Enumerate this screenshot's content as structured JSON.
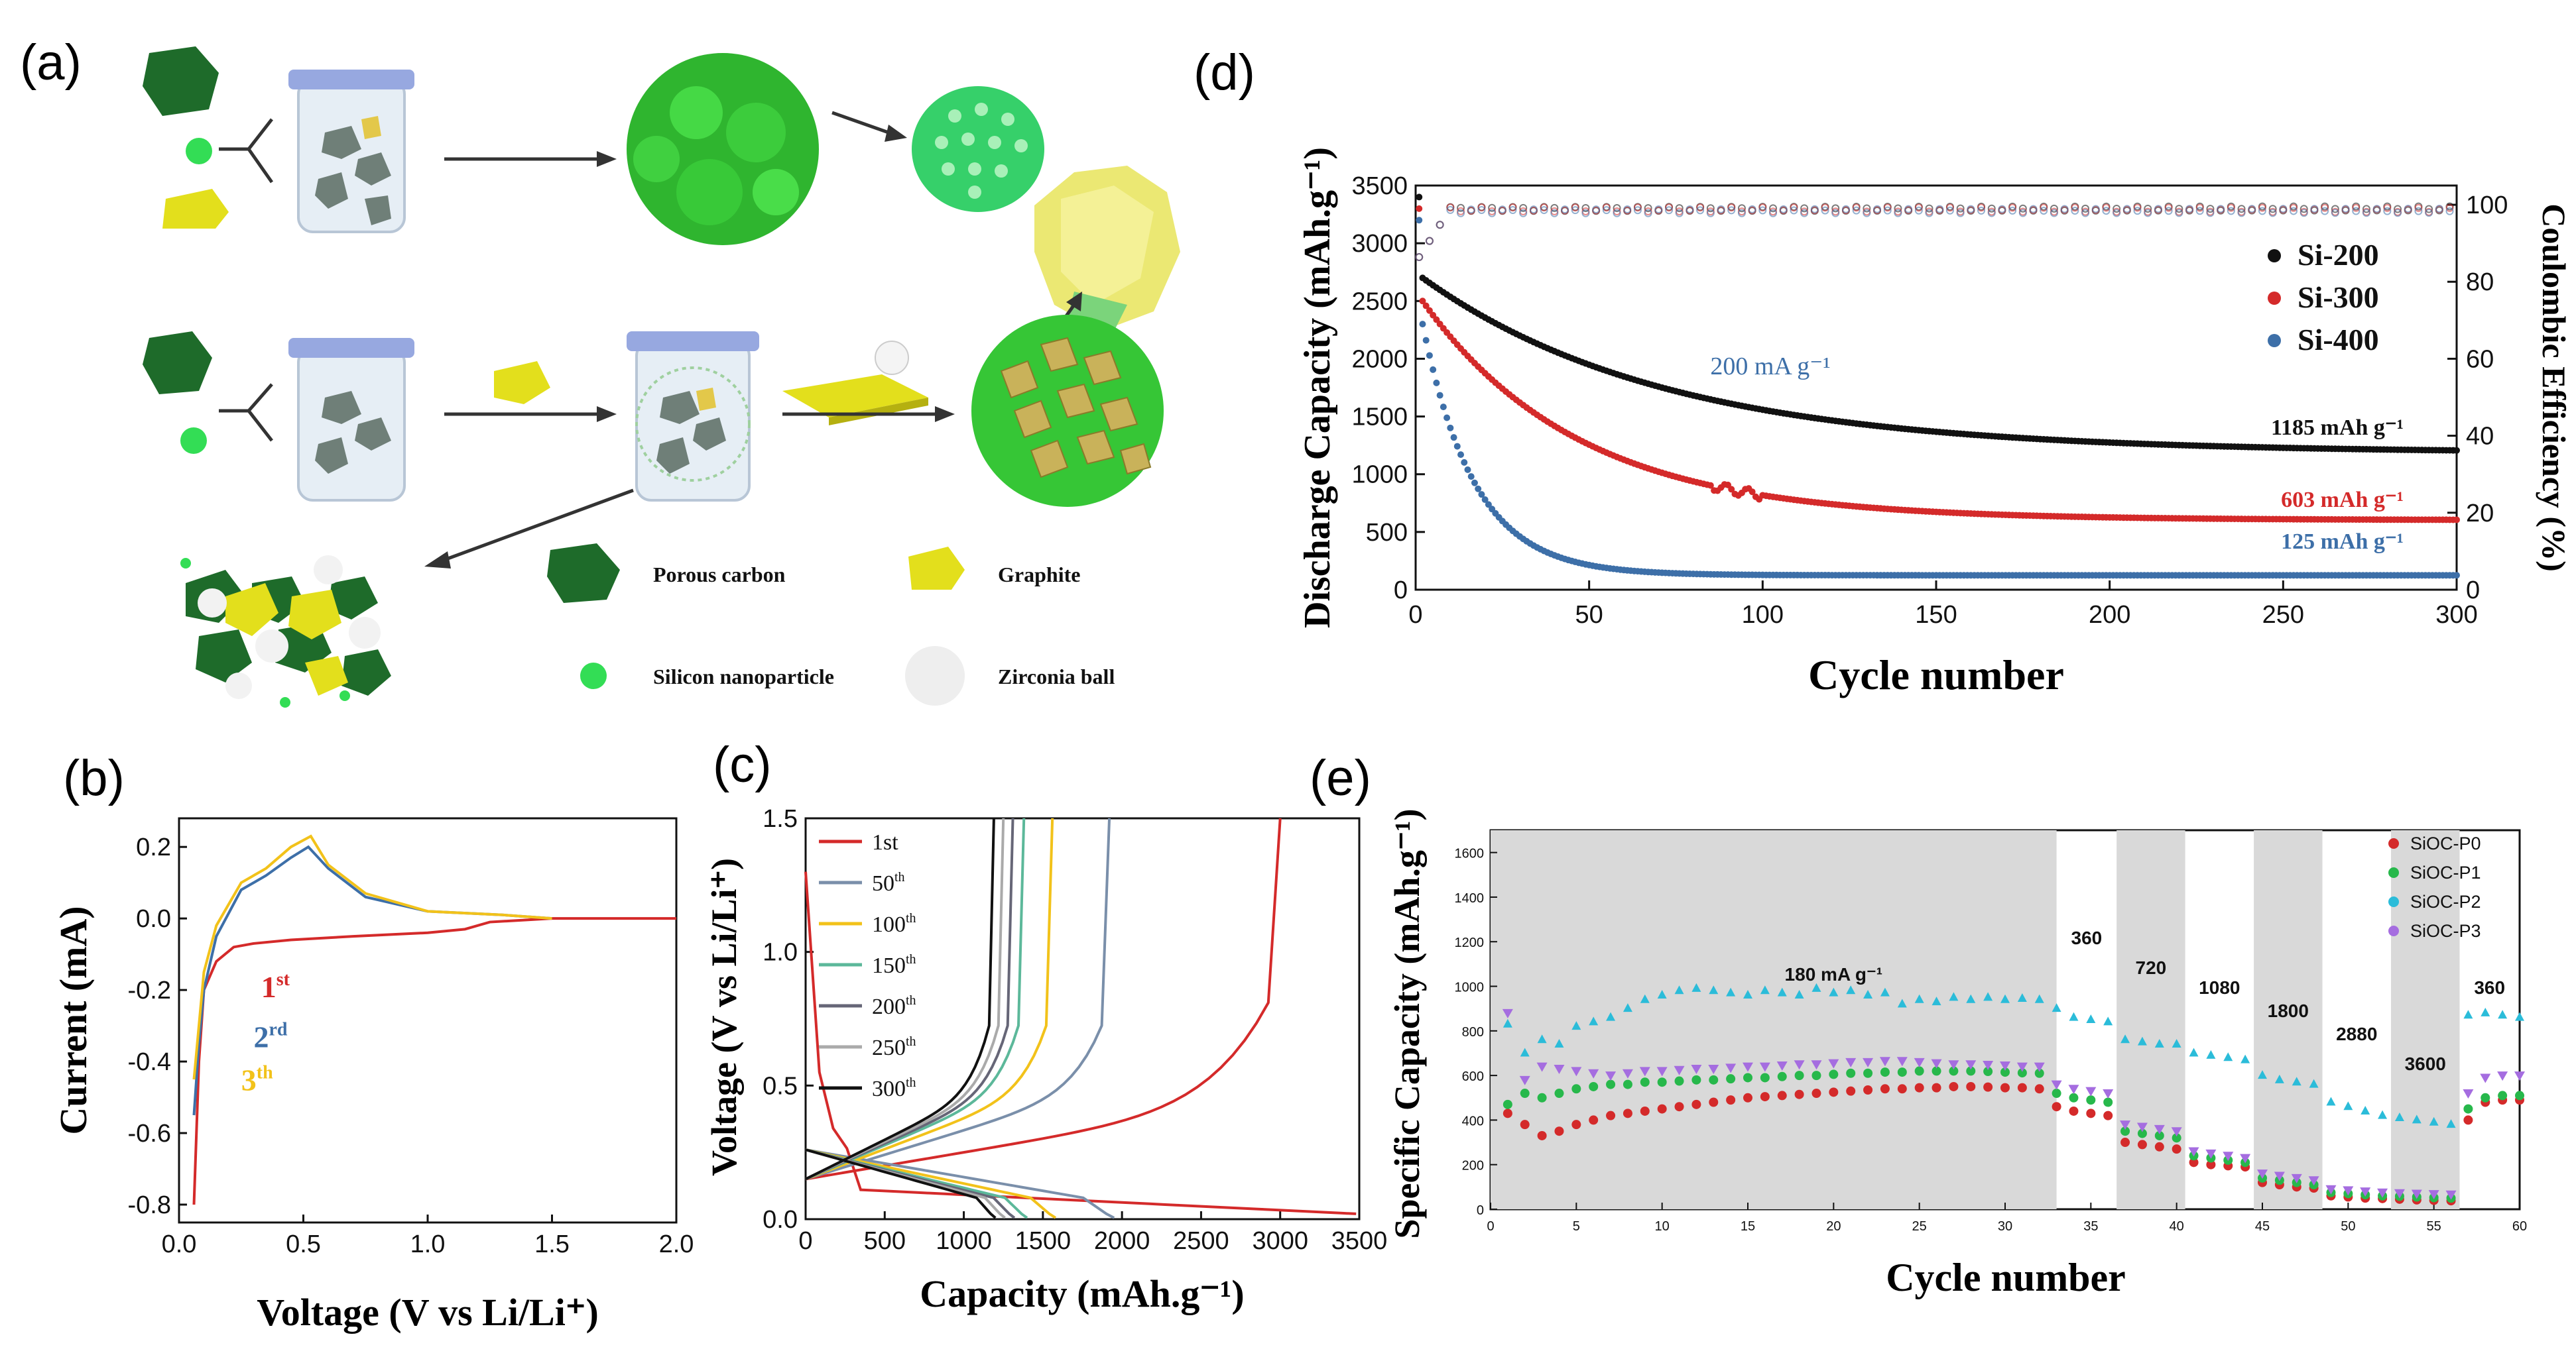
{
  "panels": {
    "a": {
      "label": "(a)",
      "legend": [
        {
          "label": "Porous carbon",
          "icon": "porous-carbon-icon",
          "color": "#1e6b2a"
        },
        {
          "label": "Graphite",
          "icon": "graphite-icon",
          "color": "#e3df1c"
        },
        {
          "label": "Silicon nanoparticle",
          "icon": "silicon-nanoparticle-icon",
          "color": "#33dd55"
        },
        {
          "label": "Zirconia ball",
          "icon": "zirconia-ball-icon",
          "color": "#eeeeee"
        }
      ]
    },
    "b": {
      "label": "(b)"
    },
    "c": {
      "label": "(c)"
    },
    "d": {
      "label": "(d)"
    },
    "e": {
      "label": "(e)"
    }
  },
  "colors": {
    "red": "#d42a2a",
    "black": "#111111",
    "blue": "#3d6fa8",
    "cyan": "#2bbcd9",
    "green": "#27b84b",
    "purple": "#a56de0",
    "yellow": "#f2c21a",
    "gray_band": "#d9d9d9"
  },
  "chart_data": [
    {
      "id": "b",
      "type": "line",
      "title": "",
      "xlabel": "Voltage (V vs Li/Li⁺)",
      "ylabel": "Current (mA)",
      "xlim": [
        0.0,
        2.0
      ],
      "ylim": [
        -0.85,
        0.28
      ],
      "xticks": [
        "0.0",
        "0.5",
        "1.0",
        "1.5",
        "2.0"
      ],
      "yticks": [
        "0.2",
        "0.0",
        "-0.2",
        "-0.4",
        "-0.6",
        "-0.8"
      ],
      "annotations": [
        {
          "text": "1",
          "sup": "st",
          "color": "red",
          "x": 0.33,
          "y": -0.22
        },
        {
          "text": "2",
          "sup": "rd",
          "color": "blue",
          "x": 0.3,
          "y": -0.36
        },
        {
          "text": "3",
          "sup": "th",
          "color": "yellow",
          "x": 0.25,
          "y": -0.48
        }
      ],
      "series": [
        {
          "name": "1st",
          "color": "red",
          "x": [
            0.06,
            0.08,
            0.1,
            0.15,
            0.22,
            0.3,
            0.45,
            0.7,
            1.0,
            1.15,
            1.25,
            1.5,
            2.0
          ],
          "y": [
            -0.8,
            -0.4,
            -0.2,
            -0.12,
            -0.08,
            -0.07,
            -0.06,
            -0.05,
            -0.04,
            -0.03,
            -0.01,
            0.0,
            0.0
          ]
        },
        {
          "name": "2nd",
          "color": "blue",
          "x": [
            0.06,
            0.08,
            0.1,
            0.15,
            0.25,
            0.35,
            0.45,
            0.52,
            0.6,
            0.75,
            1.0,
            1.3,
            1.5
          ],
          "y": [
            -0.55,
            -0.35,
            -0.2,
            -0.05,
            0.08,
            0.12,
            0.17,
            0.2,
            0.14,
            0.06,
            0.02,
            0.01,
            0.0
          ]
        },
        {
          "name": "3rd",
          "color": "yellow",
          "x": [
            0.06,
            0.08,
            0.1,
            0.15,
            0.25,
            0.35,
            0.45,
            0.53,
            0.6,
            0.75,
            1.0,
            1.3,
            1.5
          ],
          "y": [
            -0.45,
            -0.3,
            -0.15,
            -0.02,
            0.1,
            0.14,
            0.2,
            0.23,
            0.15,
            0.07,
            0.02,
            0.01,
            0.0
          ]
        }
      ]
    },
    {
      "id": "c",
      "type": "line",
      "title": "",
      "xlabel": "Capacity (mAh.g⁻¹)",
      "ylabel": "Voltage (V vs Li/Li⁺)",
      "xlim": [
        0,
        3500
      ],
      "ylim": [
        0.0,
        1.5
      ],
      "xticks": [
        "0",
        "500",
        "1000",
        "1500",
        "2000",
        "2500",
        "3000",
        "3500"
      ],
      "yticks": [
        "0.0",
        "0.5",
        "1.0",
        "1.5"
      ],
      "legend": [
        {
          "label": "1st",
          "color": "#d42a2a"
        },
        {
          "label": "50",
          "sup": "th",
          "color": "#7a8faa"
        },
        {
          "label": "100",
          "sup": "th",
          "color": "#f2c21a"
        },
        {
          "label": "150",
          "sup": "th",
          "color": "#5cb89a"
        },
        {
          "label": "200",
          "sup": "th",
          "color": "#666677"
        },
        {
          "label": "250",
          "sup": "th",
          "color": "#aaaaaa"
        },
        {
          "label": "300",
          "sup": "th",
          "color": "#111111"
        }
      ],
      "series": [
        {
          "name": "1st",
          "color": "#d42a2a",
          "discharge_end": 3480,
          "charge_end": 3000
        },
        {
          "name": "50th",
          "color": "#7a8faa",
          "discharge_end": 1950,
          "charge_end": 1920
        },
        {
          "name": "100th",
          "color": "#f2c21a",
          "discharge_end": 1580,
          "charge_end": 1560
        },
        {
          "name": "150th",
          "color": "#5cb89a",
          "discharge_end": 1400,
          "charge_end": 1380
        },
        {
          "name": "200th",
          "color": "#666677",
          "discharge_end": 1320,
          "charge_end": 1310
        },
        {
          "name": "250th",
          "color": "#aaaaaa",
          "discharge_end": 1260,
          "charge_end": 1250
        },
        {
          "name": "300th",
          "color": "#111111",
          "discharge_end": 1200,
          "charge_end": 1190
        }
      ]
    },
    {
      "id": "d",
      "type": "scatter",
      "title": "",
      "xlabel": "Cycle number",
      "ylabel": "Discharge Capacity (mAh.g⁻¹)",
      "y2label": "Coulombic Efficiency (%)",
      "xlim": [
        0,
        300
      ],
      "ylim": [
        0,
        3500
      ],
      "y2lim": [
        0,
        105
      ],
      "xticks": [
        "0",
        "50",
        "100",
        "150",
        "200",
        "250",
        "300"
      ],
      "yticks": [
        "0",
        "500",
        "1000",
        "1500",
        "2000",
        "2500",
        "3000",
        "3500"
      ],
      "y2ticks": [
        "0",
        "20",
        "40",
        "60",
        "80",
        "100"
      ],
      "rate_label": "200 mA g⁻¹",
      "end_labels": [
        {
          "text": "1185 mAh g⁻¹",
          "color": "#111111"
        },
        {
          "text": "603 mAh g⁻¹",
          "color": "#d42a2a"
        },
        {
          "text": "125 mAh g⁻¹",
          "color": "#3d6fa8"
        }
      ],
      "legend": [
        {
          "label": "Si-200",
          "color": "#111111"
        },
        {
          "label": "Si-300",
          "color": "#d42a2a"
        },
        {
          "label": "Si-400",
          "color": "#3d6fa8"
        }
      ],
      "series": [
        {
          "name": "Si-200",
          "color": "#111111",
          "start": 3400,
          "end": 1185,
          "second": 2700,
          "knee": 20,
          "tau": 70
        },
        {
          "name": "Si-300",
          "color": "#d42a2a",
          "start": 3300,
          "end": 603,
          "second": 2500,
          "knee": 15,
          "tau": 45
        },
        {
          "name": "Si-400",
          "color": "#3d6fa8",
          "start": 3200,
          "end": 125,
          "second": 2300,
          "knee": 8,
          "tau": 15
        }
      ],
      "coulombic_efficiency": {
        "start": 85,
        "plateau": 99
      }
    },
    {
      "id": "e",
      "type": "scatter",
      "title": "",
      "xlabel": "Cycle number",
      "ylabel": "Specific Capacity (mAh.g⁻¹)",
      "xlim": [
        0,
        60
      ],
      "ylim": [
        0,
        1700
      ],
      "xticks": [
        "0",
        "5",
        "10",
        "15",
        "20",
        "25",
        "30",
        "35",
        "40",
        "45",
        "50",
        "55",
        "60"
      ],
      "yticks": [
        "0",
        "200",
        "400",
        "600",
        "800",
        "1000",
        "1200",
        "1400",
        "1600"
      ],
      "rate_bands": [
        {
          "from": 0,
          "to": 33,
          "label": "180 mA g⁻¹",
          "shaded": true
        },
        {
          "from": 33,
          "to": 36.5,
          "label": "360",
          "shaded": false
        },
        {
          "from": 36.5,
          "to": 40.5,
          "label": "720",
          "shaded": true
        },
        {
          "from": 40.5,
          "to": 44.5,
          "label": "1080",
          "shaded": false
        },
        {
          "from": 44.5,
          "to": 48.5,
          "label": "1800",
          "shaded": true
        },
        {
          "from": 48.5,
          "to": 52.5,
          "label": "2880",
          "shaded": false
        },
        {
          "from": 52.5,
          "to": 56.5,
          "label": "3600",
          "shaded": true
        },
        {
          "from": 56.5,
          "to": 60,
          "label": "360",
          "shaded": false
        }
      ],
      "legend": [
        {
          "label": "SiOC-P0",
          "color": "#d42a2a"
        },
        {
          "label": "SiOC-P1",
          "color": "#27b84b"
        },
        {
          "label": "SiOC-P2",
          "color": "#2bbcd9"
        },
        {
          "label": "SiOC-P3",
          "color": "#a56de0"
        }
      ],
      "series": [
        {
          "name": "SiOC-P0",
          "color": "#d42a2a",
          "values": [
            430,
            380,
            330,
            350,
            380,
            400,
            420,
            430,
            440,
            450,
            460,
            470,
            480,
            490,
            500,
            505,
            510,
            515,
            520,
            525,
            530,
            535,
            540,
            540,
            545,
            545,
            550,
            550,
            548,
            545,
            545,
            540,
            460,
            440,
            430,
            420,
            300,
            290,
            280,
            270,
            210,
            200,
            195,
            190,
            120,
            110,
            100,
            95,
            60,
            55,
            50,
            48,
            45,
            42,
            40,
            38,
            400,
            480,
            490,
            490
          ]
        },
        {
          "name": "SiOC-P1",
          "color": "#27b84b",
          "values": [
            470,
            520,
            500,
            520,
            540,
            550,
            560,
            560,
            570,
            570,
            575,
            580,
            580,
            585,
            590,
            590,
            595,
            600,
            600,
            605,
            610,
            610,
            615,
            615,
            620,
            620,
            620,
            620,
            618,
            615,
            612,
            610,
            520,
            500,
            490,
            480,
            350,
            340,
            330,
            320,
            240,
            230,
            220,
            210,
            140,
            130,
            120,
            110,
            75,
            70,
            65,
            60,
            58,
            55,
            52,
            50,
            450,
            500,
            510,
            510
          ]
        },
        {
          "name": "SiOC-P2",
          "color": "#2bbcd9",
          "values": [
            830,
            700,
            760,
            740,
            820,
            840,
            860,
            900,
            940,
            960,
            980,
            990,
            980,
            970,
            960,
            980,
            970,
            960,
            990,
            970,
            980,
            960,
            970,
            920,
            940,
            930,
            950,
            940,
            950,
            940,
            945,
            940,
            900,
            860,
            850,
            840,
            760,
            750,
            740,
            740,
            700,
            690,
            680,
            670,
            600,
            580,
            570,
            560,
            480,
            460,
            440,
            420,
            410,
            400,
            390,
            380,
            870,
            880,
            870,
            860
          ]
        },
        {
          "name": "SiOC-P3",
          "color": "#a56de0",
          "values": [
            880,
            580,
            640,
            630,
            620,
            610,
            600,
            610,
            620,
            620,
            625,
            630,
            630,
            635,
            640,
            640,
            645,
            650,
            650,
            655,
            660,
            660,
            665,
            665,
            660,
            655,
            650,
            650,
            648,
            645,
            640,
            640,
            560,
            540,
            530,
            520,
            380,
            370,
            360,
            350,
            260,
            250,
            240,
            230,
            160,
            150,
            140,
            130,
            90,
            85,
            80,
            75,
            72,
            70,
            68,
            66,
            520,
            590,
            600,
            600
          ]
        }
      ]
    }
  ]
}
